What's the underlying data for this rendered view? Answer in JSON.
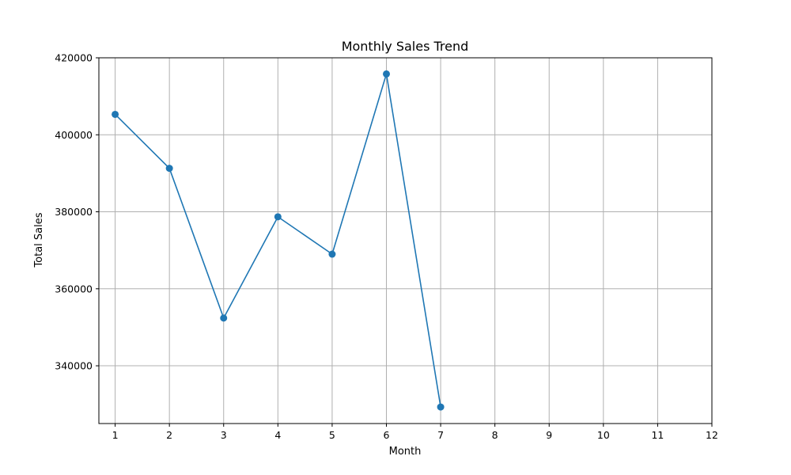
{
  "chart_data": {
    "type": "line",
    "title": "Monthly Sales Trend",
    "xlabel": "Month",
    "ylabel": "Total Sales",
    "xlim": [
      0.7,
      12
    ],
    "ylim": [
      325000,
      420000
    ],
    "x_ticks": [
      1,
      2,
      3,
      4,
      5,
      6,
      7,
      8,
      9,
      10,
      11,
      12
    ],
    "y_ticks": [
      340000,
      360000,
      380000,
      400000,
      420000
    ],
    "grid": true,
    "colors": {
      "line": "#1f77b4",
      "grid": "#b0b0b0",
      "frame": "#000000"
    },
    "series": [
      {
        "x": [
          1,
          2,
          3,
          4,
          5,
          6,
          7
        ],
        "y": [
          405300,
          391300,
          352400,
          378700,
          369000,
          415800,
          329300
        ],
        "marker": "circle"
      }
    ]
  }
}
